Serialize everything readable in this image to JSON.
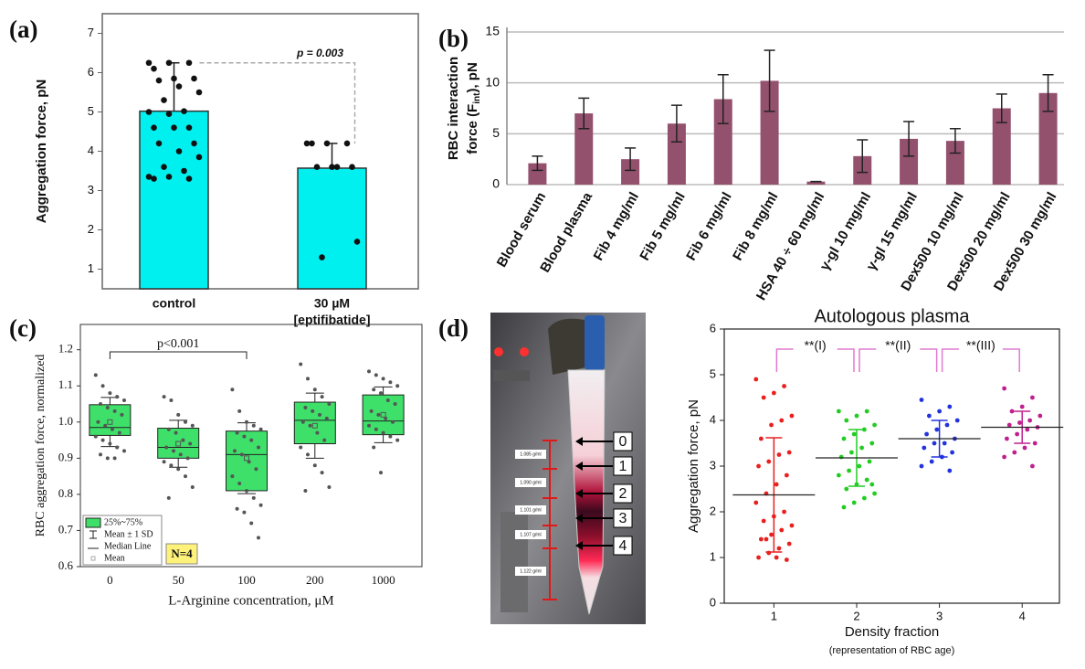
{
  "panel_labels": [
    "(a)",
    "(b)",
    "(c)",
    "(d)"
  ],
  "photo": {
    "fraction_labels": [
      "0",
      "1",
      "2",
      "3",
      "4"
    ],
    "density_labels": [
      "1.085 g/ml",
      "1.090 g/ml",
      "1.101 g/ml",
      "1.107 g/ml",
      "1.122 g/ml"
    ]
  },
  "chart_data": [
    {
      "type": "bar",
      "ylabel": "Aggregation force, pN",
      "categories": [
        [
          "control"
        ],
        [
          "30 µM",
          "[eptifibatide]"
        ]
      ],
      "values": [
        5.02,
        3.57
      ],
      "errors": [
        1.23,
        0.63
      ],
      "color": "#00f0f0",
      "points": [
        [
          6.25,
          6.25,
          6.25,
          6.1,
          5.85,
          5.85,
          5.8,
          5.65,
          5.5,
          5.3,
          5.02,
          5.0,
          4.95,
          4.6,
          4.6,
          4.6,
          4.2,
          4.2,
          4.0,
          3.85,
          3.6,
          3.5,
          3.35,
          3.35,
          3.3,
          3.3
        ],
        [
          4.2,
          4.2,
          4.2,
          4.2,
          3.6,
          3.6,
          3.6,
          3.6,
          1.7,
          1.3
        ]
      ],
      "annotation": "p = 0.003",
      "ylim": [
        0.5,
        7.5
      ],
      "yticks": [
        1,
        2,
        3,
        4,
        5,
        6,
        7
      ],
      "grid": false
    },
    {
      "type": "bar",
      "ylabel": [
        "RBC interaction",
        [
          "force (F",
          "int",
          "), pN"
        ]
      ],
      "categories": [
        "Blood serum",
        "Blood plasma",
        "Fib 4 mg/ml",
        "Fib 5 mg/ml",
        "Fib 6 mg/ml",
        "Fib 8 mg/ml",
        "HSA 40 ÷ 60 mg/ml",
        "γ-gl 10 mg/ml",
        "γ-gl 15 mg/ml",
        "Dex500 10 mg/ml",
        "Dex500 20 mg/ml",
        "Dex500 30 mg/ml"
      ],
      "values": [
        2.1,
        7.0,
        2.5,
        6.0,
        8.4,
        10.2,
        0.3,
        2.8,
        4.5,
        4.3,
        7.5,
        9.0
      ],
      "errors": [
        0.7,
        1.5,
        1.1,
        1.8,
        2.4,
        3.0,
        0,
        1.6,
        1.7,
        1.2,
        1.4,
        1.8
      ],
      "color": "#94516e",
      "ylim": [
        0,
        15
      ],
      "yticks": [
        0,
        5,
        10,
        15
      ],
      "grid": true
    },
    {
      "type": "box",
      "xlabel": "L-Arginine concentration, μM",
      "ylabel": "RBC aggregation force, normalized",
      "categories": [
        "0",
        "50",
        "100",
        "200",
        "1000"
      ],
      "q1": [
        0.963,
        0.9,
        0.81,
        0.94,
        0.965
      ],
      "median": [
        0.985,
        0.93,
        0.91,
        1.005,
        1.003
      ],
      "q3": [
        1.048,
        0.983,
        0.975,
        1.055,
        1.075
      ],
      "means": [
        1.0,
        0.94,
        0.9,
        0.99,
        1.02
      ],
      "sd": [
        0.068,
        0.065,
        0.098,
        0.09,
        0.077
      ],
      "points": [
        [
          1.13,
          1.1,
          1.08,
          1.07,
          1.06,
          1.05,
          1.04,
          1.03,
          1.02,
          1.0,
          0.99,
          0.98,
          0.97,
          0.96,
          0.95,
          0.94,
          0.93,
          0.92,
          0.91,
          0.9,
          0.9
        ],
        [
          1.07,
          1.06,
          1.02,
          1.0,
          0.99,
          0.98,
          0.97,
          0.95,
          0.94,
          0.93,
          0.92,
          0.91,
          0.9,
          0.89,
          0.88,
          0.87,
          0.85,
          0.82,
          0.79
        ],
        [
          1.09,
          1.03,
          1.0,
          0.99,
          0.98,
          0.97,
          0.96,
          0.95,
          0.93,
          0.92,
          0.91,
          0.89,
          0.87,
          0.85,
          0.83,
          0.81,
          0.79,
          0.77,
          0.76,
          0.75,
          0.72,
          0.68
        ],
        [
          1.16,
          1.12,
          1.09,
          1.07,
          1.05,
          1.04,
          1.03,
          1.02,
          1.01,
          1.0,
          0.99,
          0.97,
          0.95,
          0.93,
          0.91,
          0.88,
          0.86,
          0.82,
          0.81
        ],
        [
          1.14,
          1.13,
          1.12,
          1.11,
          1.1,
          1.09,
          1.08,
          1.06,
          1.05,
          1.03,
          1.02,
          1.01,
          1.0,
          0.99,
          0.98,
          0.97,
          0.96,
          0.95,
          0.93,
          0.86
        ]
      ],
      "color": "#3ee06a",
      "annotation": "p<0.001",
      "legend": [
        "25%~75%",
        "Mean ± 1 SD",
        "Median Line",
        "Mean"
      ],
      "note": "N=4",
      "ylim": [
        0.6,
        1.27
      ],
      "yticks": [
        0.6,
        0.7,
        0.8,
        0.9,
        {
          "value": 1,
          "label": "1.0"
        },
        1.1,
        1.2
      ]
    },
    {
      "type": "scatter",
      "title": "Autologous plasma",
      "xlabel": "Density fraction",
      "xsublabel": "(representation of RBC age)",
      "ylabel": "Aggregation force, pN",
      "series": [
        {
          "x": 1,
          "color": "#e8201e",
          "values": [
            4.9,
            4.75,
            4.6,
            4.5,
            4.1,
            4.0,
            3.9,
            3.6,
            3.3,
            3.25,
            3.1,
            3.0,
            2.8,
            2.6,
            2.4,
            2.2,
            2.0,
            1.9,
            1.8,
            1.7,
            1.6,
            1.5,
            1.4,
            1.3,
            1.2,
            1.1,
            1.0,
            0.95,
            1.0,
            1.4
          ]
        },
        {
          "x": 2,
          "color": "#22cc22",
          "values": [
            4.2,
            4.2,
            4.1,
            4.0,
            3.9,
            3.8,
            3.7,
            3.6,
            3.5,
            3.4,
            3.3,
            3.2,
            3.1,
            3.0,
            2.9,
            2.8,
            2.7,
            2.6,
            2.5,
            2.4,
            2.3,
            2.2,
            2.1,
            2.6
          ]
        },
        {
          "x": 3,
          "color": "#2233dd",
          "values": [
            4.45,
            4.3,
            4.2,
            4.1,
            4.0,
            3.9,
            3.8,
            3.7,
            3.6,
            3.5,
            3.5,
            3.4,
            3.3,
            3.2,
            3.1,
            3.0,
            2.9
          ]
        },
        {
          "x": 4,
          "color": "#c0208f",
          "values": [
            4.7,
            4.5,
            4.3,
            4.2,
            4.1,
            4.0,
            3.95,
            3.9,
            3.85,
            3.8,
            3.7,
            3.6,
            3.5,
            3.4,
            3.3,
            3.2,
            3.0
          ]
        }
      ],
      "means": [
        2.37,
        3.18,
        3.6,
        3.85
      ],
      "sd": [
        1.25,
        0.62,
        0.4,
        0.35
      ],
      "annotations": [
        "**(I)",
        "**(II)",
        "**(III)"
      ],
      "annotation_color": "#e07ad0",
      "xlim": [
        0.4,
        4.45
      ],
      "xticks": [
        1,
        2,
        3,
        4
      ],
      "ylim": [
        0,
        6
      ],
      "yticks": [
        0,
        1,
        2,
        3,
        4,
        5,
        6
      ]
    }
  ]
}
